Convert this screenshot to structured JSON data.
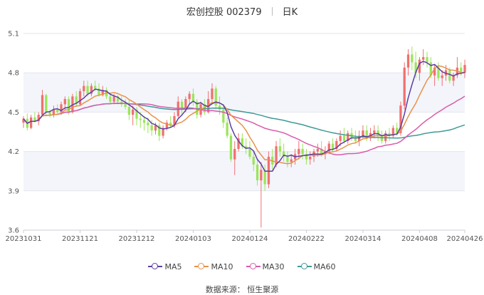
{
  "title": {
    "stock": "宏创控股 002379",
    "period": "日K"
  },
  "source_text": "数据来源： 恒生聚源",
  "colors": {
    "up": "#f07070",
    "down": "#9be55a",
    "ma5": "#5b3fa3",
    "ma10": "#e8924a",
    "ma30": "#d95cab",
    "ma60": "#3f9a94"
  },
  "chart_data": {
    "type": "candlestick",
    "ylim": [
      3.6,
      5.1
    ],
    "y_ticks": [
      "5.1",
      "4.8",
      "4.5",
      "4.2",
      "3.9",
      "3.6"
    ],
    "x_ticks": [
      "20231031",
      "20231121",
      "20231212",
      "20240103",
      "20240124",
      "20240222",
      "20240314",
      "20240408",
      "20240426"
    ],
    "x_tick_index": [
      0,
      15,
      30,
      45,
      60,
      75,
      90,
      105,
      117
    ],
    "legend": [
      {
        "key": "ma5",
        "label": "MA5"
      },
      {
        "key": "ma10",
        "label": "MA10"
      },
      {
        "key": "ma30",
        "label": "MA30"
      },
      {
        "key": "ma60",
        "label": "MA60"
      }
    ],
    "ohlc": [
      [
        4.42,
        4.47,
        4.38,
        4.45
      ],
      [
        4.45,
        4.49,
        4.36,
        4.38
      ],
      [
        4.38,
        4.48,
        4.37,
        4.46
      ],
      [
        4.46,
        4.5,
        4.42,
        4.43
      ],
      [
        4.43,
        4.5,
        4.4,
        4.48
      ],
      [
        4.48,
        4.67,
        4.47,
        4.63
      ],
      [
        4.63,
        4.64,
        4.47,
        4.5
      ],
      [
        4.5,
        4.52,
        4.46,
        4.48
      ],
      [
        4.48,
        4.55,
        4.46,
        4.52
      ],
      [
        4.52,
        4.56,
        4.49,
        4.5
      ],
      [
        4.5,
        4.58,
        4.48,
        4.56
      ],
      [
        4.56,
        4.62,
        4.52,
        4.6
      ],
      [
        4.6,
        4.62,
        4.48,
        4.5
      ],
      [
        4.5,
        4.64,
        4.49,
        4.62
      ],
      [
        4.62,
        4.66,
        4.54,
        4.56
      ],
      [
        4.56,
        4.68,
        4.55,
        4.66
      ],
      [
        4.66,
        4.74,
        4.62,
        4.7
      ],
      [
        4.7,
        4.74,
        4.62,
        4.64
      ],
      [
        4.64,
        4.72,
        4.62,
        4.7
      ],
      [
        4.7,
        4.74,
        4.66,
        4.68
      ],
      [
        4.68,
        4.72,
        4.62,
        4.63
      ],
      [
        4.63,
        4.7,
        4.62,
        4.67
      ],
      [
        4.67,
        4.69,
        4.6,
        4.62
      ],
      [
        4.62,
        4.65,
        4.56,
        4.58
      ],
      [
        4.58,
        4.64,
        4.56,
        4.62
      ],
      [
        4.62,
        4.63,
        4.56,
        4.58
      ],
      [
        4.58,
        4.62,
        4.54,
        4.56
      ],
      [
        4.56,
        4.6,
        4.52,
        4.54
      ],
      [
        4.54,
        4.6,
        4.44,
        4.48
      ],
      [
        4.48,
        4.55,
        4.4,
        4.52
      ],
      [
        4.52,
        4.54,
        4.4,
        4.45
      ],
      [
        4.45,
        4.5,
        4.38,
        4.44
      ],
      [
        4.44,
        4.47,
        4.36,
        4.42
      ],
      [
        4.42,
        4.46,
        4.34,
        4.4
      ],
      [
        4.4,
        4.44,
        4.32,
        4.36
      ],
      [
        4.36,
        4.42,
        4.33,
        4.4
      ],
      [
        4.4,
        4.42,
        4.28,
        4.32
      ],
      [
        4.32,
        4.4,
        4.3,
        4.38
      ],
      [
        4.38,
        4.44,
        4.36,
        4.42
      ],
      [
        4.42,
        4.47,
        4.38,
        4.4
      ],
      [
        4.4,
        4.5,
        4.38,
        4.47
      ],
      [
        4.47,
        4.62,
        4.46,
        4.58
      ],
      [
        4.58,
        4.6,
        4.48,
        4.52
      ],
      [
        4.52,
        4.62,
        4.5,
        4.6
      ],
      [
        4.6,
        4.66,
        4.56,
        4.64
      ],
      [
        4.64,
        4.68,
        4.55,
        4.58
      ],
      [
        4.58,
        4.6,
        4.45,
        4.48
      ],
      [
        4.48,
        4.58,
        4.46,
        4.56
      ],
      [
        4.56,
        4.6,
        4.48,
        4.5
      ],
      [
        4.5,
        4.66,
        4.49,
        4.6
      ],
      [
        4.6,
        4.72,
        4.58,
        4.68
      ],
      [
        4.68,
        4.7,
        4.52,
        4.55
      ],
      [
        4.55,
        4.62,
        4.48,
        4.52
      ],
      [
        4.52,
        4.56,
        4.38,
        4.42
      ],
      [
        4.42,
        4.46,
        4.3,
        4.32
      ],
      [
        4.32,
        4.34,
        4.12,
        4.14
      ],
      [
        4.14,
        4.28,
        4.02,
        4.22
      ],
      [
        4.22,
        4.34,
        4.2,
        4.3
      ],
      [
        4.3,
        4.34,
        4.22,
        4.24
      ],
      [
        4.24,
        4.3,
        4.18,
        4.22
      ],
      [
        4.22,
        4.28,
        4.14,
        4.16
      ],
      [
        4.16,
        4.2,
        4.05,
        4.1
      ],
      [
        4.1,
        4.14,
        3.94,
        3.98
      ],
      [
        3.98,
        4.12,
        3.62,
        4.06
      ],
      [
        4.06,
        4.1,
        3.9,
        3.95
      ],
      [
        3.95,
        4.2,
        3.92,
        4.16
      ],
      [
        4.16,
        4.22,
        4.06,
        4.1
      ],
      [
        4.1,
        4.28,
        4.08,
        4.24
      ],
      [
        4.24,
        4.3,
        4.16,
        4.2
      ],
      [
        4.2,
        4.26,
        4.12,
        4.16
      ],
      [
        4.16,
        4.2,
        4.08,
        4.12
      ],
      [
        4.12,
        4.18,
        4.08,
        4.14
      ],
      [
        4.14,
        4.22,
        4.1,
        4.18
      ],
      [
        4.18,
        4.28,
        4.14,
        4.22
      ],
      [
        4.22,
        4.26,
        4.14,
        4.18
      ],
      [
        4.18,
        4.22,
        4.1,
        4.14
      ],
      [
        4.14,
        4.2,
        4.1,
        4.16
      ],
      [
        4.16,
        4.22,
        4.12,
        4.2
      ],
      [
        4.2,
        4.26,
        4.16,
        4.22
      ],
      [
        4.22,
        4.28,
        4.16,
        4.18
      ],
      [
        4.18,
        4.24,
        4.14,
        4.2
      ],
      [
        4.2,
        4.28,
        4.18,
        4.26
      ],
      [
        4.26,
        4.3,
        4.2,
        4.22
      ],
      [
        4.22,
        4.3,
        4.2,
        4.28
      ],
      [
        4.28,
        4.36,
        4.24,
        4.32
      ],
      [
        4.32,
        4.38,
        4.26,
        4.28
      ],
      [
        4.28,
        4.36,
        4.26,
        4.34
      ],
      [
        4.34,
        4.38,
        4.28,
        4.3
      ],
      [
        4.3,
        4.36,
        4.26,
        4.28
      ],
      [
        4.28,
        4.36,
        4.24,
        4.32
      ],
      [
        4.32,
        4.4,
        4.3,
        4.36
      ],
      [
        4.36,
        4.4,
        4.28,
        4.3
      ],
      [
        4.3,
        4.38,
        4.28,
        4.34
      ],
      [
        4.34,
        4.4,
        4.3,
        4.36
      ],
      [
        4.36,
        4.4,
        4.28,
        4.32
      ],
      [
        4.32,
        4.36,
        4.26,
        4.28
      ],
      [
        4.28,
        4.36,
        4.26,
        4.34
      ],
      [
        4.34,
        4.38,
        4.28,
        4.32
      ],
      [
        4.32,
        4.4,
        4.3,
        4.38
      ],
      [
        4.38,
        4.42,
        4.32,
        4.34
      ],
      [
        4.34,
        4.58,
        4.32,
        4.55
      ],
      [
        4.55,
        4.88,
        4.52,
        4.84
      ],
      [
        4.84,
        4.98,
        4.78,
        4.94
      ],
      [
        4.94,
        5.0,
        4.82,
        4.88
      ],
      [
        4.88,
        4.96,
        4.76,
        4.8
      ],
      [
        4.8,
        4.92,
        4.74,
        4.9
      ],
      [
        4.9,
        4.98,
        4.86,
        4.92
      ],
      [
        4.92,
        4.96,
        4.84,
        4.88
      ],
      [
        4.88,
        4.92,
        4.76,
        4.78
      ],
      [
        4.78,
        4.86,
        4.7,
        4.84
      ],
      [
        4.84,
        4.88,
        4.74,
        4.76
      ],
      [
        4.76,
        4.82,
        4.7,
        4.78
      ],
      [
        4.78,
        4.86,
        4.74,
        4.82
      ],
      [
        4.82,
        4.84,
        4.72,
        4.74
      ],
      [
        4.74,
        4.8,
        4.7,
        4.78
      ],
      [
        4.78,
        4.92,
        4.76,
        4.84
      ],
      [
        4.84,
        4.88,
        4.78,
        4.8
      ],
      [
        4.8,
        4.9,
        4.76,
        4.86
      ]
    ]
  }
}
